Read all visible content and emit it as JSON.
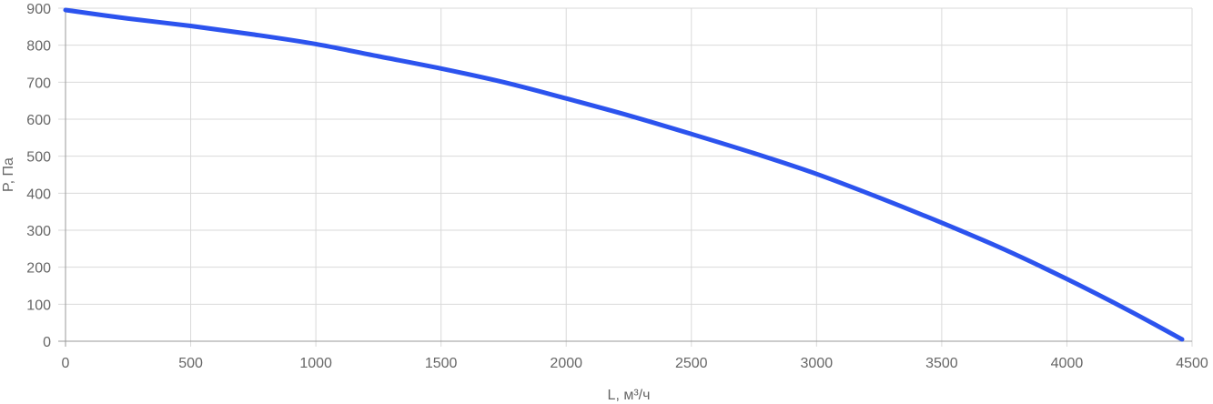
{
  "chart_data": {
    "type": "line",
    "xlabel": "L, м³/ч",
    "ylabel": "P, Па",
    "xlim": [
      0,
      4500
    ],
    "ylim": [
      0,
      900
    ],
    "xticks": [
      0,
      500,
      1000,
      1500,
      2000,
      2500,
      3000,
      3500,
      4000,
      4500
    ],
    "yticks": [
      0,
      100,
      200,
      300,
      400,
      500,
      600,
      700,
      800,
      900
    ],
    "grid": true,
    "series": [
      {
        "color": "#2c53ee",
        "x": [
          0,
          250,
          500,
          750,
          1000,
          1250,
          1500,
          1750,
          2000,
          2250,
          2500,
          2750,
          3000,
          3250,
          3500,
          3750,
          4000,
          4250,
          4460
        ],
        "y": [
          895,
          872,
          852,
          829,
          803,
          770,
          737,
          700,
          656,
          610,
          560,
          508,
          452,
          388,
          320,
          248,
          168,
          82,
          5
        ]
      }
    ]
  }
}
